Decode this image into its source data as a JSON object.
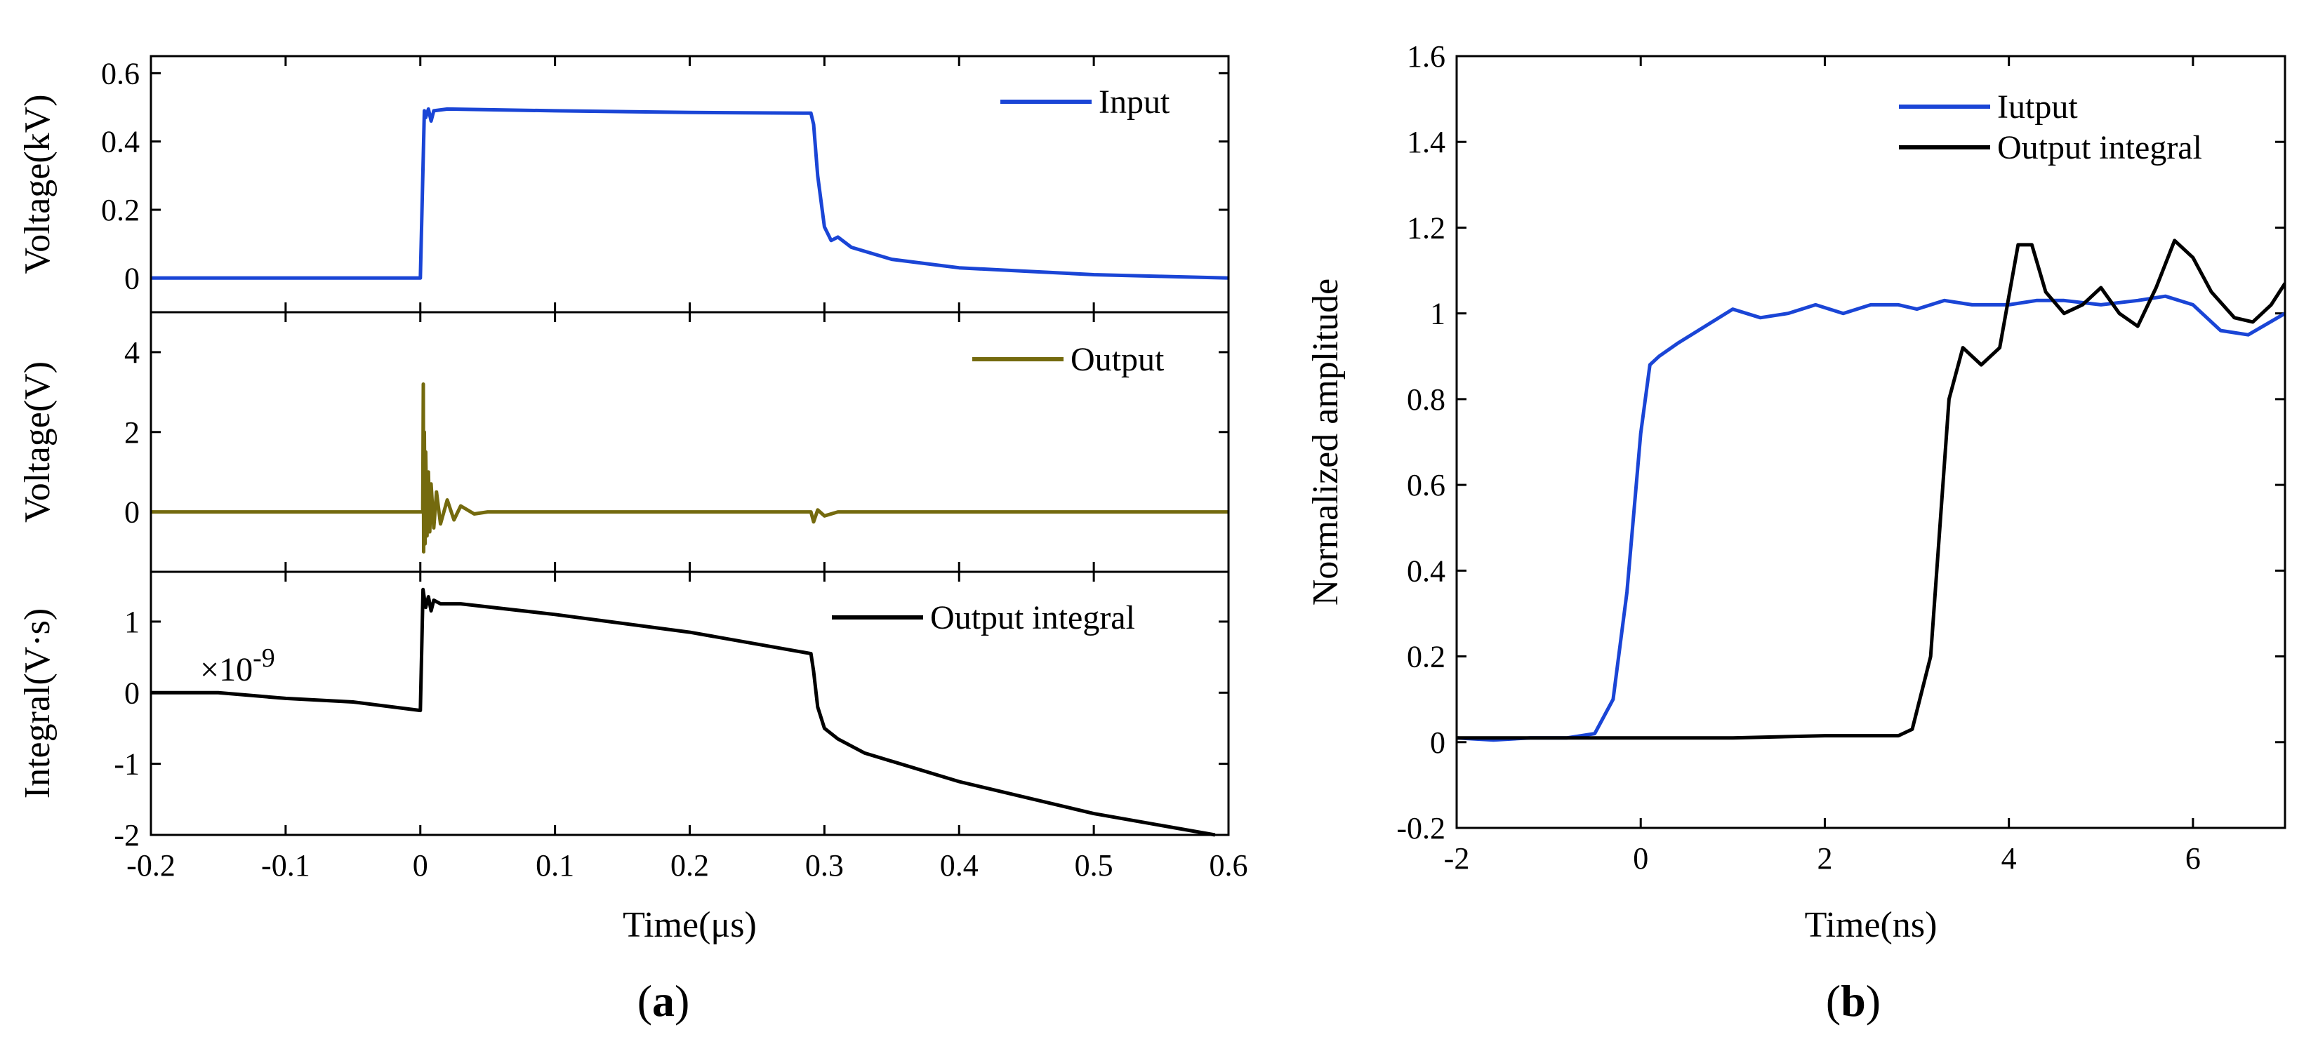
{
  "figure": {
    "caption_a": "a",
    "caption_b": "b"
  },
  "chart_data": [
    {
      "id": "a-top",
      "type": "line",
      "ylabel": "Voltage(kV)",
      "xlim": [
        -0.2,
        0.6
      ],
      "ylim": [
        -0.1,
        0.65
      ],
      "yticks": [
        "0",
        "0.2",
        "0.4",
        "0.6"
      ],
      "legend_position": "top-right",
      "series": [
        {
          "name": "Input",
          "color": "#1a45d6",
          "x": [
            -0.2,
            -0.1,
            0.0,
            0.003,
            0.004,
            0.006,
            0.008,
            0.01,
            0.02,
            0.1,
            0.2,
            0.29,
            0.292,
            0.295,
            0.3,
            0.305,
            0.31,
            0.32,
            0.35,
            0.4,
            0.45,
            0.5,
            0.55,
            0.6
          ],
          "y": [
            0.0,
            0.0,
            0.0,
            0.49,
            0.47,
            0.495,
            0.46,
            0.49,
            0.495,
            0.49,
            0.485,
            0.483,
            0.45,
            0.3,
            0.15,
            0.11,
            0.12,
            0.09,
            0.055,
            0.03,
            0.02,
            0.01,
            0.005,
            0.0
          ]
        }
      ]
    },
    {
      "id": "a-mid",
      "type": "line",
      "ylabel": "Voltage(V)",
      "xlim": [
        -0.2,
        0.6
      ],
      "ylim": [
        -1.5,
        5
      ],
      "yticks": [
        "0",
        "2",
        "4"
      ],
      "legend_position": "top-right",
      "series": [
        {
          "name": "Output",
          "color": "#746a0e",
          "x": [
            -0.2,
            -0.1,
            0.0,
            0.0018,
            0.0022,
            0.0025,
            0.003,
            0.0035,
            0.004,
            0.005,
            0.006,
            0.007,
            0.008,
            0.01,
            0.012,
            0.015,
            0.02,
            0.025,
            0.03,
            0.04,
            0.05,
            0.1,
            0.2,
            0.29,
            0.292,
            0.295,
            0.3,
            0.31,
            0.4,
            0.5,
            0.6
          ],
          "y": [
            0.0,
            0.0,
            0.0,
            0.0,
            3.2,
            -1.0,
            2.0,
            -0.8,
            1.5,
            -0.6,
            1.0,
            -0.5,
            0.7,
            -0.4,
            0.5,
            -0.3,
            0.3,
            -0.2,
            0.15,
            -0.05,
            0.0,
            0.0,
            0.0,
            0.0,
            -0.25,
            0.05,
            -0.1,
            0.0,
            0.0,
            0.0,
            0.0
          ]
        }
      ]
    },
    {
      "id": "a-bot",
      "type": "line",
      "ylabel": "Integral(V·s)",
      "xlabel": "Time(μs)",
      "xlim": [
        -0.2,
        0.6
      ],
      "ylim": [
        -2,
        1.7
      ],
      "xticks": [
        "-0.2",
        "-0.1",
        "0",
        "0.1",
        "0.2",
        "0.3",
        "0.4",
        "0.5",
        "0.6"
      ],
      "yticks": [
        "-2",
        "-1",
        "0",
        "1"
      ],
      "annotation_prefix": "×10",
      "annotation_exp": "-9",
      "legend_position": "top-right",
      "series": [
        {
          "name": "Output integral",
          "color": "#000000",
          "x": [
            -0.2,
            -0.15,
            -0.1,
            -0.05,
            0.0,
            0.002,
            0.004,
            0.006,
            0.008,
            0.01,
            0.015,
            0.03,
            0.1,
            0.2,
            0.29,
            0.292,
            0.295,
            0.3,
            0.31,
            0.33,
            0.4,
            0.5,
            0.59
          ],
          "y": [
            0.0,
            0.0,
            -0.08,
            -0.13,
            -0.25,
            1.45,
            1.2,
            1.35,
            1.15,
            1.3,
            1.25,
            1.25,
            1.1,
            0.85,
            0.55,
            0.3,
            -0.2,
            -0.5,
            -0.65,
            -0.85,
            -1.25,
            -1.7,
            -2.0
          ]
        }
      ]
    },
    {
      "id": "b",
      "type": "line",
      "ylabel": "Normalized amplitude",
      "xlabel": "Time(ns)",
      "xlim": [
        -2,
        7
      ],
      "ylim": [
        -0.2,
        1.6
      ],
      "xticks": [
        "-2",
        "0",
        "2",
        "4",
        "6"
      ],
      "yticks": [
        "-0.2",
        "0",
        "0.2",
        "0.4",
        "0.6",
        "0.8",
        "1",
        "1.2",
        "1.4",
        "1.6"
      ],
      "legend_position": "top-right",
      "series": [
        {
          "name": "Iutput",
          "color": "#1a45d6",
          "x": [
            -2,
            -1.6,
            -1.2,
            -0.8,
            -0.5,
            -0.3,
            -0.15,
            0.0,
            0.1,
            0.2,
            0.4,
            0.7,
            1.0,
            1.3,
            1.6,
            1.9,
            2.2,
            2.5,
            2.8,
            3.0,
            3.3,
            3.6,
            4.0,
            4.3,
            4.6,
            5.0,
            5.4,
            5.7,
            6.0,
            6.3,
            6.6,
            7.0
          ],
          "y": [
            0.01,
            0.005,
            0.01,
            0.01,
            0.02,
            0.1,
            0.35,
            0.72,
            0.88,
            0.9,
            0.93,
            0.97,
            1.01,
            0.99,
            1.0,
            1.02,
            1.0,
            1.02,
            1.02,
            1.01,
            1.03,
            1.02,
            1.02,
            1.03,
            1.03,
            1.02,
            1.03,
            1.04,
            1.02,
            0.96,
            0.95,
            1.0
          ]
        },
        {
          "name": "Output integral",
          "color": "#000000",
          "x": [
            -2,
            -1,
            0,
            1,
            2,
            2.5,
            2.8,
            2.95,
            3.15,
            3.35,
            3.5,
            3.7,
            3.9,
            4.1,
            4.25,
            4.4,
            4.6,
            4.8,
            5.0,
            5.2,
            5.4,
            5.6,
            5.8,
            6.0,
            6.2,
            6.45,
            6.65,
            6.85,
            7.0
          ],
          "y": [
            0.01,
            0.01,
            0.01,
            0.01,
            0.015,
            0.015,
            0.015,
            0.03,
            0.2,
            0.8,
            0.92,
            0.88,
            0.92,
            1.16,
            1.16,
            1.05,
            1.0,
            1.02,
            1.06,
            1.0,
            0.97,
            1.06,
            1.17,
            1.13,
            1.05,
            0.99,
            0.98,
            1.02,
            1.07
          ]
        }
      ]
    }
  ]
}
